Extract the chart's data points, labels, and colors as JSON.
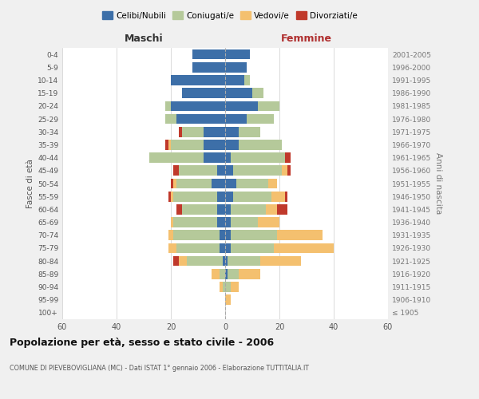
{
  "age_groups": [
    "100+",
    "95-99",
    "90-94",
    "85-89",
    "80-84",
    "75-79",
    "70-74",
    "65-69",
    "60-64",
    "55-59",
    "50-54",
    "45-49",
    "40-44",
    "35-39",
    "30-34",
    "25-29",
    "20-24",
    "15-19",
    "10-14",
    "5-9",
    "0-4"
  ],
  "birth_years": [
    "≤ 1905",
    "1906-1910",
    "1911-1915",
    "1916-1920",
    "1921-1925",
    "1926-1930",
    "1931-1935",
    "1936-1940",
    "1941-1945",
    "1946-1950",
    "1951-1955",
    "1956-1960",
    "1961-1965",
    "1966-1970",
    "1971-1975",
    "1976-1980",
    "1981-1985",
    "1986-1990",
    "1991-1995",
    "1996-2000",
    "2001-2005"
  ],
  "males": {
    "celibi": [
      0,
      0,
      0,
      0,
      1,
      2,
      2,
      3,
      3,
      3,
      5,
      3,
      8,
      8,
      8,
      18,
      20,
      16,
      20,
      12,
      12
    ],
    "coniugati": [
      0,
      0,
      1,
      2,
      13,
      16,
      17,
      16,
      13,
      16,
      13,
      14,
      20,
      12,
      8,
      4,
      2,
      0,
      0,
      0,
      0
    ],
    "vedovi": [
      0,
      0,
      1,
      3,
      3,
      3,
      2,
      1,
      0,
      1,
      1,
      0,
      0,
      1,
      0,
      0,
      0,
      0,
      0,
      0,
      0
    ],
    "divorziati": [
      0,
      0,
      0,
      0,
      2,
      0,
      0,
      0,
      2,
      1,
      1,
      2,
      0,
      1,
      1,
      0,
      0,
      0,
      0,
      0,
      0
    ]
  },
  "females": {
    "nubili": [
      0,
      0,
      0,
      1,
      1,
      2,
      2,
      2,
      2,
      3,
      4,
      3,
      2,
      5,
      5,
      8,
      12,
      10,
      7,
      8,
      9
    ],
    "coniugate": [
      0,
      0,
      2,
      4,
      12,
      16,
      17,
      10,
      13,
      14,
      12,
      18,
      20,
      16,
      8,
      10,
      8,
      4,
      2,
      0,
      0
    ],
    "vedove": [
      0,
      2,
      3,
      8,
      15,
      22,
      17,
      8,
      4,
      5,
      3,
      2,
      0,
      0,
      0,
      0,
      0,
      0,
      0,
      0,
      0
    ],
    "divorziate": [
      0,
      0,
      0,
      0,
      0,
      0,
      0,
      0,
      4,
      1,
      0,
      1,
      2,
      0,
      0,
      0,
      0,
      0,
      0,
      0,
      0
    ]
  },
  "colors": {
    "celibi_nubili": "#3d6fa8",
    "coniugati": "#b5c99a",
    "vedovi": "#f4c06f",
    "divorziati": "#c0392b"
  },
  "xlim": 60,
  "title": "Popolazione per età, sesso e stato civile - 2006",
  "subtitle": "COMUNE DI PIEVEBOVIGLIANA (MC) - Dati ISTAT 1° gennaio 2006 - Elaborazione TUTTITALIA.IT",
  "xlabel_left": "Maschi",
  "xlabel_right": "Femmine",
  "ylabel_left": "Fasce di età",
  "ylabel_right": "Anni di nascita",
  "bg_color": "#f0f0f0",
  "plot_bg_color": "#ffffff"
}
